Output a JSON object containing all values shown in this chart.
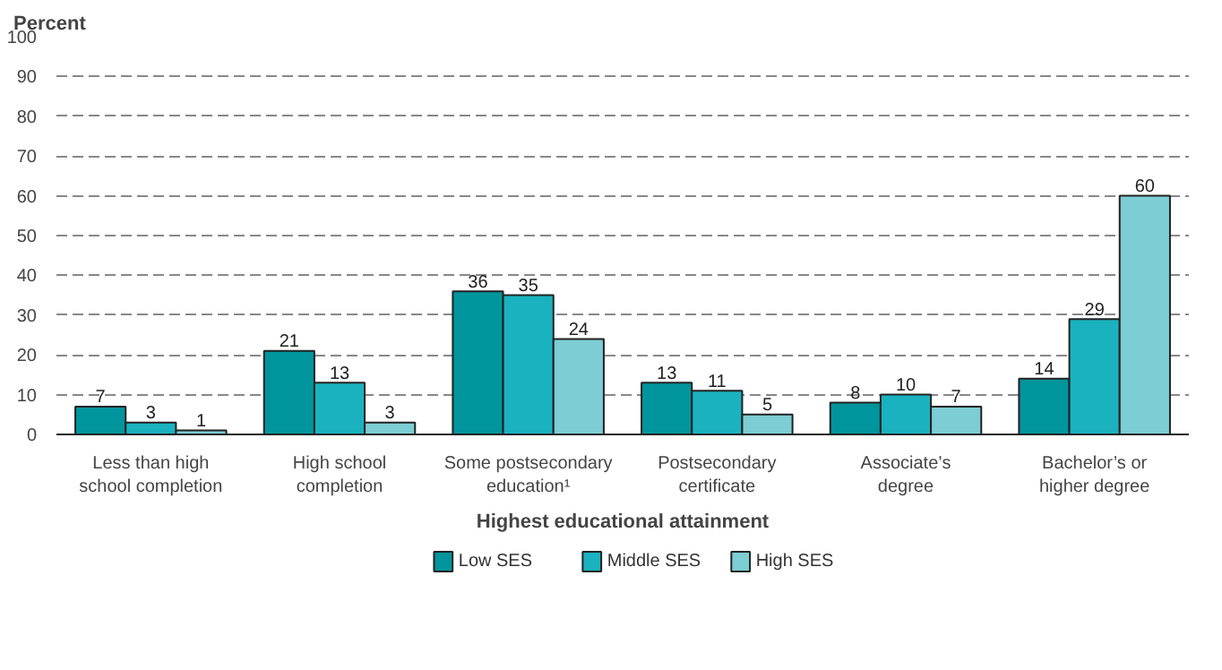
{
  "chart_data": {
    "type": "bar",
    "ylabel": "Percent",
    "xlabel": "Highest educational attainment",
    "categories": [
      "Less than high\nschool completion",
      "High school\ncompletion",
      "Some postsecondary\neducation¹",
      "Postsecondary\ncertificate",
      "Associate’s\ndegree",
      "Bachelor’s or\nhigher degree"
    ],
    "series": [
      {
        "name": "Low SES",
        "color": "#00959c",
        "values": [
          7,
          21,
          36,
          13,
          8,
          14
        ]
      },
      {
        "name": "Middle SES",
        "color": "#1ab2bf",
        "values": [
          3,
          13,
          35,
          11,
          10,
          29
        ]
      },
      {
        "name": "High SES",
        "color": "#7dcdd4",
        "values": [
          1,
          3,
          24,
          5,
          7,
          60
        ]
      }
    ],
    "ylim": [
      0,
      100
    ],
    "yticks": [
      0,
      10,
      20,
      30,
      40,
      50,
      60,
      70,
      80,
      90,
      100
    ],
    "grid": "y",
    "legend": "bottom",
    "data_labels": true
  }
}
